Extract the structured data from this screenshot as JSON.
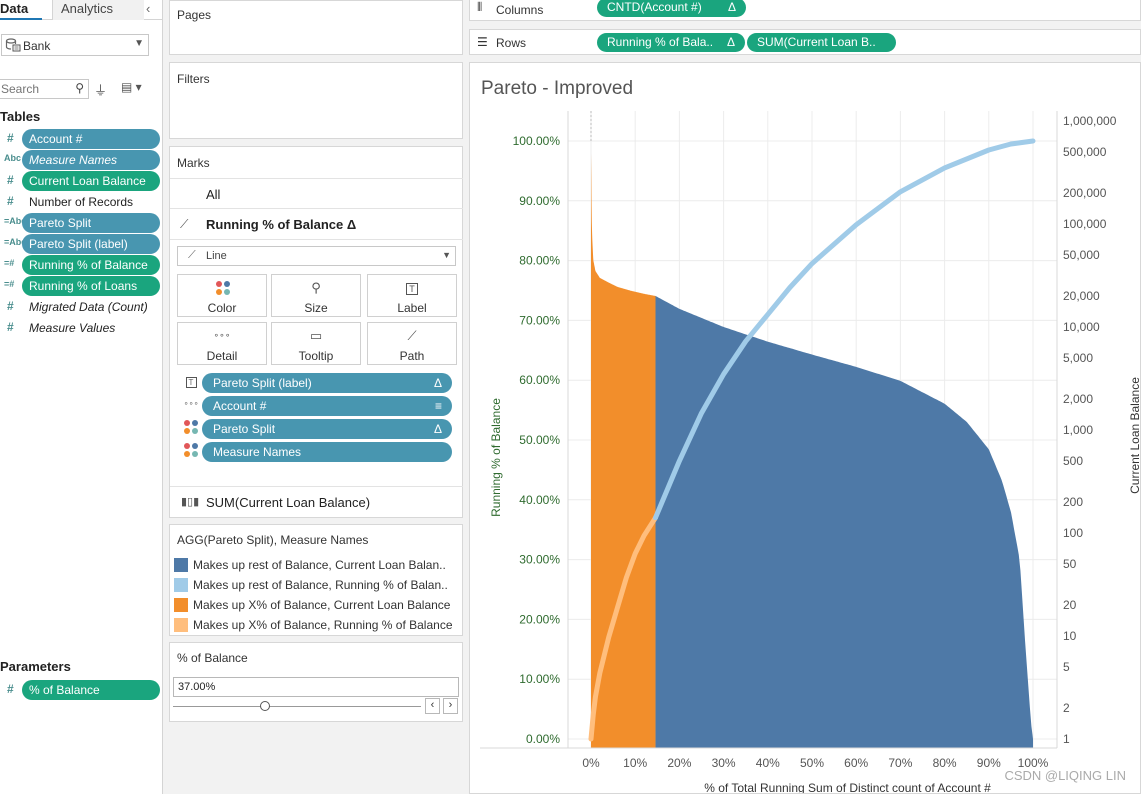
{
  "data_pane": {
    "tabs": [
      "Data",
      "Analytics"
    ],
    "collapse_glyph": "‹",
    "datasource": "Bank",
    "search_placeholder": "Search",
    "tables_heading": "Tables",
    "parameters_heading": "Parameters",
    "fields": [
      {
        "name": "Account #",
        "type": "#",
        "style": "pill-blue"
      },
      {
        "name": "Measure Names",
        "type": "Abc",
        "style": "pill-blue-italic"
      },
      {
        "name": "Current Loan Balance",
        "type": "#",
        "style": "pill-green"
      },
      {
        "name": "Number of Records",
        "type": "#",
        "style": "plain"
      },
      {
        "name": "Pareto Split",
        "type": "=Abc",
        "style": "pill-blue"
      },
      {
        "name": "Pareto Split (label)",
        "type": "=Abc",
        "style": "pill-blue"
      },
      {
        "name": "Running % of Balance",
        "type": "=#",
        "style": "pill-green"
      },
      {
        "name": "Running % of Loans",
        "type": "=#",
        "style": "pill-green"
      },
      {
        "name": "Migrated Data (Count)",
        "type": "#",
        "style": "plain-italic"
      },
      {
        "name": "Measure Values",
        "type": "#",
        "style": "plain-italic"
      }
    ],
    "parameters": [
      {
        "name": "% of Balance",
        "type": "#"
      }
    ]
  },
  "shelves": {
    "pages_label": "Pages",
    "filters_label": "Filters",
    "columns_label": "Columns",
    "rows_label": "Rows",
    "columns_pills": [
      {
        "label": "CNTD(Account #)",
        "delta": "Δ"
      }
    ],
    "rows_pills": [
      {
        "label": "Running % of Bala..",
        "delta": "Δ"
      },
      {
        "label": "SUM(Current Loan B..",
        "delta": ""
      }
    ]
  },
  "marks": {
    "heading": "Marks",
    "all_label": "All",
    "measure_card": "Running % of Balance Δ",
    "mark_type": "Line",
    "buttons": [
      "Color",
      "Size",
      "Label",
      "Detail",
      "Tooltip",
      "Path"
    ],
    "encodings": [
      {
        "label": "Pareto Split (label)",
        "suffix": "Δ",
        "icon": "label-icon"
      },
      {
        "label": "Account #",
        "suffix": "sort",
        "icon": "detail-icon"
      },
      {
        "label": "Pareto Split",
        "suffix": "Δ",
        "icon": "color-icon"
      },
      {
        "label": "Measure Names",
        "suffix": "",
        "icon": "color-icon"
      }
    ],
    "second_card": "SUM(Current Loan Balance)"
  },
  "legend": {
    "title": "AGG(Pareto Split), Measure Names",
    "items": [
      {
        "label": "Makes up rest of Balance, Current Loan Balan..",
        "color": "#4e79a7"
      },
      {
        "label": "Makes up rest of Balance, Running % of Balan..",
        "color": "#a0cbe8"
      },
      {
        "label": "Makes up X% of Balance, Current Loan Balance",
        "color": "#f28e2b"
      },
      {
        "label": "Makes up X% of Balance, Running % of Balance",
        "color": "#ffbe7d"
      }
    ]
  },
  "parameter_control": {
    "title": "% of Balance",
    "value": "37.00%",
    "slider_fraction": 0.37
  },
  "viz": {
    "title": "Pareto - Improved",
    "watermark": "CSDN @LIQING LIN"
  },
  "chart_data": {
    "type": "bar",
    "title": "Pareto - Improved",
    "xlabel": "% of Total Running Sum of Distinct count of Account #",
    "ylabel_left": "Running % of Balance",
    "ylabel_right": "Current Loan Balance",
    "x_ticks": [
      "0%",
      "10%",
      "20%",
      "30%",
      "40%",
      "50%",
      "60%",
      "70%",
      "80%",
      "90%",
      "100%"
    ],
    "y_left_ticks": [
      "0.00%",
      "10.00%",
      "20.00%",
      "30.00%",
      "40.00%",
      "50.00%",
      "60.00%",
      "70.00%",
      "80.00%",
      "90.00%",
      "100.00%"
    ],
    "y_right_ticks": [
      "1",
      "2",
      "5",
      "10",
      "20",
      "50",
      "100",
      "200",
      "500",
      "1,000",
      "2,000",
      "5,000",
      "10,000",
      "20,000",
      "50,000",
      "100,000",
      "200,000",
      "500,000",
      "1,000,000"
    ],
    "y_right_scale": "log",
    "xlim": [
      0,
      1
    ],
    "ylim_left": [
      0,
      1
    ],
    "ylim_right": [
      1,
      1000000
    ],
    "split_x": 0.146,
    "series": [
      {
        "name": "Current Loan Balance",
        "kind": "bar",
        "x": [
          0.0,
          0.002,
          0.005,
          0.01,
          0.02,
          0.04,
          0.06,
          0.09,
          0.12,
          0.146,
          0.2,
          0.3,
          0.4,
          0.5,
          0.6,
          0.7,
          0.8,
          0.85,
          0.9,
          0.93,
          0.95,
          0.97,
          0.98,
          0.99,
          0.995,
          1.0
        ],
        "y": [
          480000,
          90000,
          45000,
          35000,
          30000,
          27000,
          24500,
          22500,
          21000,
          20000,
          15000,
          10000,
          7200,
          5400,
          4100,
          3000,
          1800,
          1200,
          650,
          320,
          160,
          55,
          12,
          3,
          1.5,
          1
        ]
      },
      {
        "name": "Running % of Balance",
        "kind": "line",
        "x": [
          0.0,
          0.005,
          0.01,
          0.02,
          0.04,
          0.06,
          0.08,
          0.1,
          0.12,
          0.146,
          0.2,
          0.25,
          0.3,
          0.35,
          0.4,
          0.45,
          0.5,
          0.6,
          0.7,
          0.8,
          0.9,
          0.95,
          1.0
        ],
        "y": [
          0.0,
          0.04,
          0.07,
          0.11,
          0.17,
          0.22,
          0.27,
          0.31,
          0.34,
          0.37,
          0.465,
          0.545,
          0.61,
          0.665,
          0.71,
          0.755,
          0.795,
          0.86,
          0.915,
          0.955,
          0.985,
          0.995,
          1.0
        ]
      }
    ],
    "colors": {
      "bar_split": "#f28e2b",
      "bar_rest": "#4e79a7",
      "line_split": "#ffbe7d",
      "line_rest": "#a0cbe8"
    },
    "grid": true
  }
}
